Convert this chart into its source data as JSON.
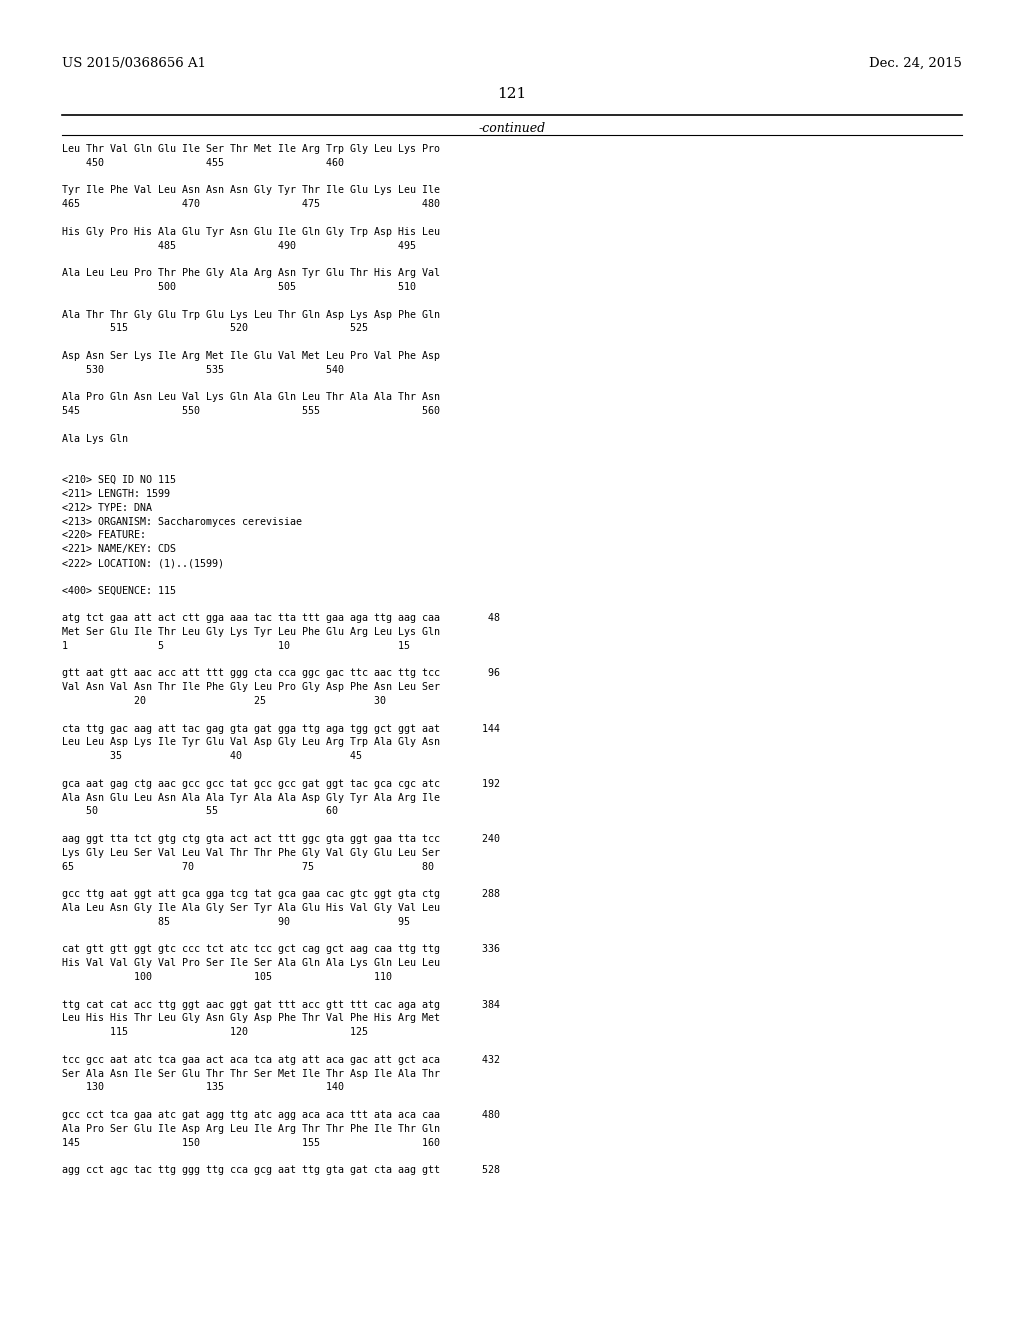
{
  "left_header": "US 2015/0368656 A1",
  "right_header": "Dec. 24, 2015",
  "page_number": "121",
  "continued_label": "-continued",
  "background_color": "#ffffff",
  "text_color": "#000000",
  "body_lines": [
    "Leu Thr Val Gln Glu Ile Ser Thr Met Ile Arg Trp Gly Leu Lys Pro",
    "    450                 455                 460",
    "",
    "Tyr Ile Phe Val Leu Asn Asn Asn Gly Tyr Thr Ile Glu Lys Leu Ile",
    "465                 470                 475                 480",
    "",
    "His Gly Pro His Ala Glu Tyr Asn Glu Ile Gln Gly Trp Asp His Leu",
    "                485                 490                 495",
    "",
    "Ala Leu Leu Pro Thr Phe Gly Ala Arg Asn Tyr Glu Thr His Arg Val",
    "                500                 505                 510",
    "",
    "Ala Thr Thr Gly Glu Trp Glu Lys Leu Thr Gln Asp Lys Asp Phe Gln",
    "        515                 520                 525",
    "",
    "Asp Asn Ser Lys Ile Arg Met Ile Glu Val Met Leu Pro Val Phe Asp",
    "    530                 535                 540",
    "",
    "Ala Pro Gln Asn Leu Val Lys Gln Ala Gln Leu Thr Ala Ala Thr Asn",
    "545                 550                 555                 560",
    "",
    "Ala Lys Gln",
    "",
    "",
    "<210> SEQ ID NO 115",
    "<211> LENGTH: 1599",
    "<212> TYPE: DNA",
    "<213> ORGANISM: Saccharomyces cerevisiae",
    "<220> FEATURE:",
    "<221> NAME/KEY: CDS",
    "<222> LOCATION: (1)..(1599)",
    "",
    "<400> SEQUENCE: 115",
    "",
    "atg tct gaa att act ctt gga aaa tac tta ttt gaa aga ttg aag caa        48",
    "Met Ser Glu Ile Thr Leu Gly Lys Tyr Leu Phe Glu Arg Leu Lys Gln",
    "1               5                   10                  15",
    "",
    "gtt aat gtt aac acc att ttt ggg cta cca ggc gac ttc aac ttg tcc        96",
    "Val Asn Val Asn Thr Ile Phe Gly Leu Pro Gly Asp Phe Asn Leu Ser",
    "            20                  25                  30",
    "",
    "cta ttg gac aag att tac gag gta gat gga ttg aga tgg gct ggt aat       144",
    "Leu Leu Asp Lys Ile Tyr Glu Val Asp Gly Leu Arg Trp Ala Gly Asn",
    "        35                  40                  45",
    "",
    "gca aat gag ctg aac gcc gcc tat gcc gcc gat ggt tac gca cgc atc       192",
    "Ala Asn Glu Leu Asn Ala Ala Tyr Ala Ala Asp Gly Tyr Ala Arg Ile",
    "    50                  55                  60",
    "",
    "aag ggt tta tct gtg ctg gta act act ttt ggc gta ggt gaa tta tcc       240",
    "Lys Gly Leu Ser Val Leu Val Thr Thr Phe Gly Val Gly Glu Leu Ser",
    "65                  70                  75                  80",
    "",
    "gcc ttg aat ggt att gca gga tcg tat gca gaa cac gtc ggt gta ctg       288",
    "Ala Leu Asn Gly Ile Ala Gly Ser Tyr Ala Glu His Val Gly Val Leu",
    "                85                  90                  95",
    "",
    "cat gtt gtt ggt gtc ccc tct atc tcc gct cag gct aag caa ttg ttg       336",
    "His Val Val Gly Val Pro Ser Ile Ser Ala Gln Ala Lys Gln Leu Leu",
    "            100                 105                 110",
    "",
    "ttg cat cat acc ttg ggt aac ggt gat ttt acc gtt ttt cac aga atg       384",
    "Leu His His Thr Leu Gly Asn Gly Asp Phe Thr Val Phe His Arg Met",
    "        115                 120                 125",
    "",
    "tcc gcc aat atc tca gaa act aca tca atg att aca gac att gct aca       432",
    "Ser Ala Asn Ile Ser Glu Thr Thr Ser Met Ile Thr Asp Ile Ala Thr",
    "    130                 135                 140",
    "",
    "gcc cct tca gaa atc gat agg ttg atc agg aca aca ttt ata aca caa       480",
    "Ala Pro Ser Glu Ile Asp Arg Leu Ile Arg Thr Thr Phe Ile Thr Gln",
    "145                 150                 155                 160",
    "",
    "agg cct agc tac ttg ggg ttg cca gcg aat ttg gta gat cta aag gtt       528"
  ]
}
